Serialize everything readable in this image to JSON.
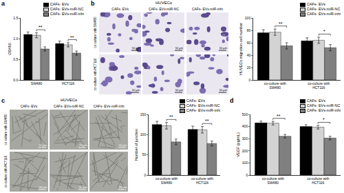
{
  "chart_data": [
    {
      "panel": "a",
      "type": "bar",
      "y_label": "OD450",
      "categories": [
        "SW480",
        "HCT116"
      ],
      "series": [
        {
          "name": "CAFs- EVs",
          "color": "#000000",
          "values": [
            1.1,
            0.88
          ],
          "errors": [
            0.06,
            0.06
          ]
        },
        {
          "name": "CAFs- EVs-miR-NC",
          "color": "#d3d3d3",
          "values": [
            1.08,
            0.85
          ],
          "errors": [
            0.06,
            0.05
          ]
        },
        {
          "name": "CAFs- EVs-miR-inhi",
          "color": "#808080",
          "values": [
            0.75,
            0.65
          ],
          "errors": [
            0.05,
            0.05
          ]
        }
      ],
      "ylim": [
        0,
        1.5
      ],
      "yticks": [
        {
          "value": 0,
          "label": "0.0"
        },
        0.5,
        {
          "value": 1,
          "label": "1.0"
        },
        1.5
      ],
      "significance": [
        {
          "category": "SW480",
          "from": "CAFs- EVs-miR-NC",
          "to": "CAFs- EVs-miR-inhi",
          "label": "**"
        },
        {
          "category": "HCT116",
          "from": "CAFs- EVs-miR-NC",
          "to": "CAFs- EVs-miR-inhi",
          "label": "**"
        }
      ]
    },
    {
      "type": "bar",
      "y_label": "HUVECs migration cell number",
      "categories": [
        "co-culture with SW480",
        "co-culture with HCT116"
      ],
      "series": [
        {
          "name": "CAFs- EVs",
          "color": "#000000",
          "values": [
            76,
            63
          ],
          "errors": [
            5,
            5
          ]
        },
        {
          "name": "CAFs- EVs-miR-NC",
          "color": "#d3d3d3",
          "values": [
            77,
            64
          ],
          "errors": [
            5,
            5
          ]
        },
        {
          "name": "CAFs- EVs-miR-inhi",
          "color": "#808080",
          "values": [
            55,
            52
          ],
          "errors": [
            5,
            5
          ]
        }
      ],
      "ylim": [
        0,
        100
      ],
      "yticks": [
        0,
        20,
        40,
        60,
        80,
        100
      ],
      "significance": [
        {
          "category": "co-culture with SW480",
          "from": "CAFs- EVs-miR-NC",
          "to": "CAFs- EVs-miR-inhi",
          "label": "**"
        },
        {
          "category": "co-culture with HCT116",
          "from": "CAFs- EVs-miR-NC",
          "to": "CAFs- EVs-miR-inhi",
          "label": "*"
        }
      ]
    },
    {
      "type": "bar",
      "y_label": "Number of junction",
      "categories": [
        "co-culture with SW480",
        "co-culture with HCT116"
      ],
      "series": [
        {
          "name": "CAFs- EVs",
          "color": "#000000",
          "values": [
            125,
            113
          ],
          "errors": [
            8,
            8
          ]
        },
        {
          "name": "CAFs- EVs-miR-NC",
          "color": "#d3d3d3",
          "values": [
            122,
            112
          ],
          "errors": [
            8,
            8
          ]
        },
        {
          "name": "CAFs- EVs-miR-inhi",
          "color": "#808080",
          "values": [
            82,
            78
          ],
          "errors": [
            7,
            6
          ]
        }
      ],
      "ylim": [
        0,
        150
      ],
      "yticks": [
        0,
        50,
        100,
        150
      ],
      "significance": [
        {
          "category": "co-culture with SW480",
          "from": "CAFs- EVs-miR-NC",
          "to": "CAFs- EVs-miR-inhi",
          "label": "**"
        },
        {
          "category": "co-culture with HCT116",
          "from": "CAFs- EVs-miR-NC",
          "to": "CAFs- EVs-miR-inhi",
          "label": "**"
        }
      ]
    },
    {
      "panel": "d",
      "type": "bar",
      "y_label": "VEGF (pg/mL)",
      "categories": [
        "co-culture with SW480",
        "co-culture with HCT116"
      ],
      "series": [
        {
          "name": "CAFs- EVs",
          "color": "#000000",
          "values": [
            430,
            400
          ],
          "errors": [
            15,
            15
          ]
        },
        {
          "name": "CAFs- EVs-miR-NC",
          "color": "#d3d3d3",
          "values": [
            428,
            395
          ],
          "errors": [
            15,
            15
          ]
        },
        {
          "name": "CAFs- EVs-miR-inhi",
          "color": "#808080",
          "values": [
            320,
            305
          ],
          "errors": [
            15,
            15
          ]
        }
      ],
      "ylim": [
        0,
        500
      ],
      "yticks": [
        0,
        100,
        200,
        300,
        400,
        500
      ],
      "significance": [
        {
          "category": "co-culture with SW480",
          "from": "CAFs- EVs-miR-NC",
          "to": "CAFs- EVs-miR-inhi",
          "label": "**"
        },
        {
          "category": "co-culture with HCT116",
          "from": "CAFs- EVs-miR-NC",
          "to": "CAFs- EVs-miR-inhi",
          "label": "*"
        }
      ]
    }
  ],
  "image_panels": [
    {
      "panel": "b",
      "title": "HUVECs",
      "columns": [
        "CAFs- EVs",
        "CAFs- EVs-miR-NC",
        "CAFs- EVs-miR-inhi"
      ],
      "rows": [
        "co-culture with SW480",
        "co-culture with HCT116"
      ],
      "scale_bar": "50 μm",
      "style": "stained"
    },
    {
      "panel": "c",
      "title": "HUVECs",
      "columns": [
        "CAFs- EVs",
        "CAFs- EVs-miR-NC",
        "CAFs- EVs-miR-inhi"
      ],
      "rows": [
        "co-culture with SW480",
        "co-culture with HCT116"
      ],
      "scale_bar": "50 μm",
      "style": "network"
    }
  ]
}
